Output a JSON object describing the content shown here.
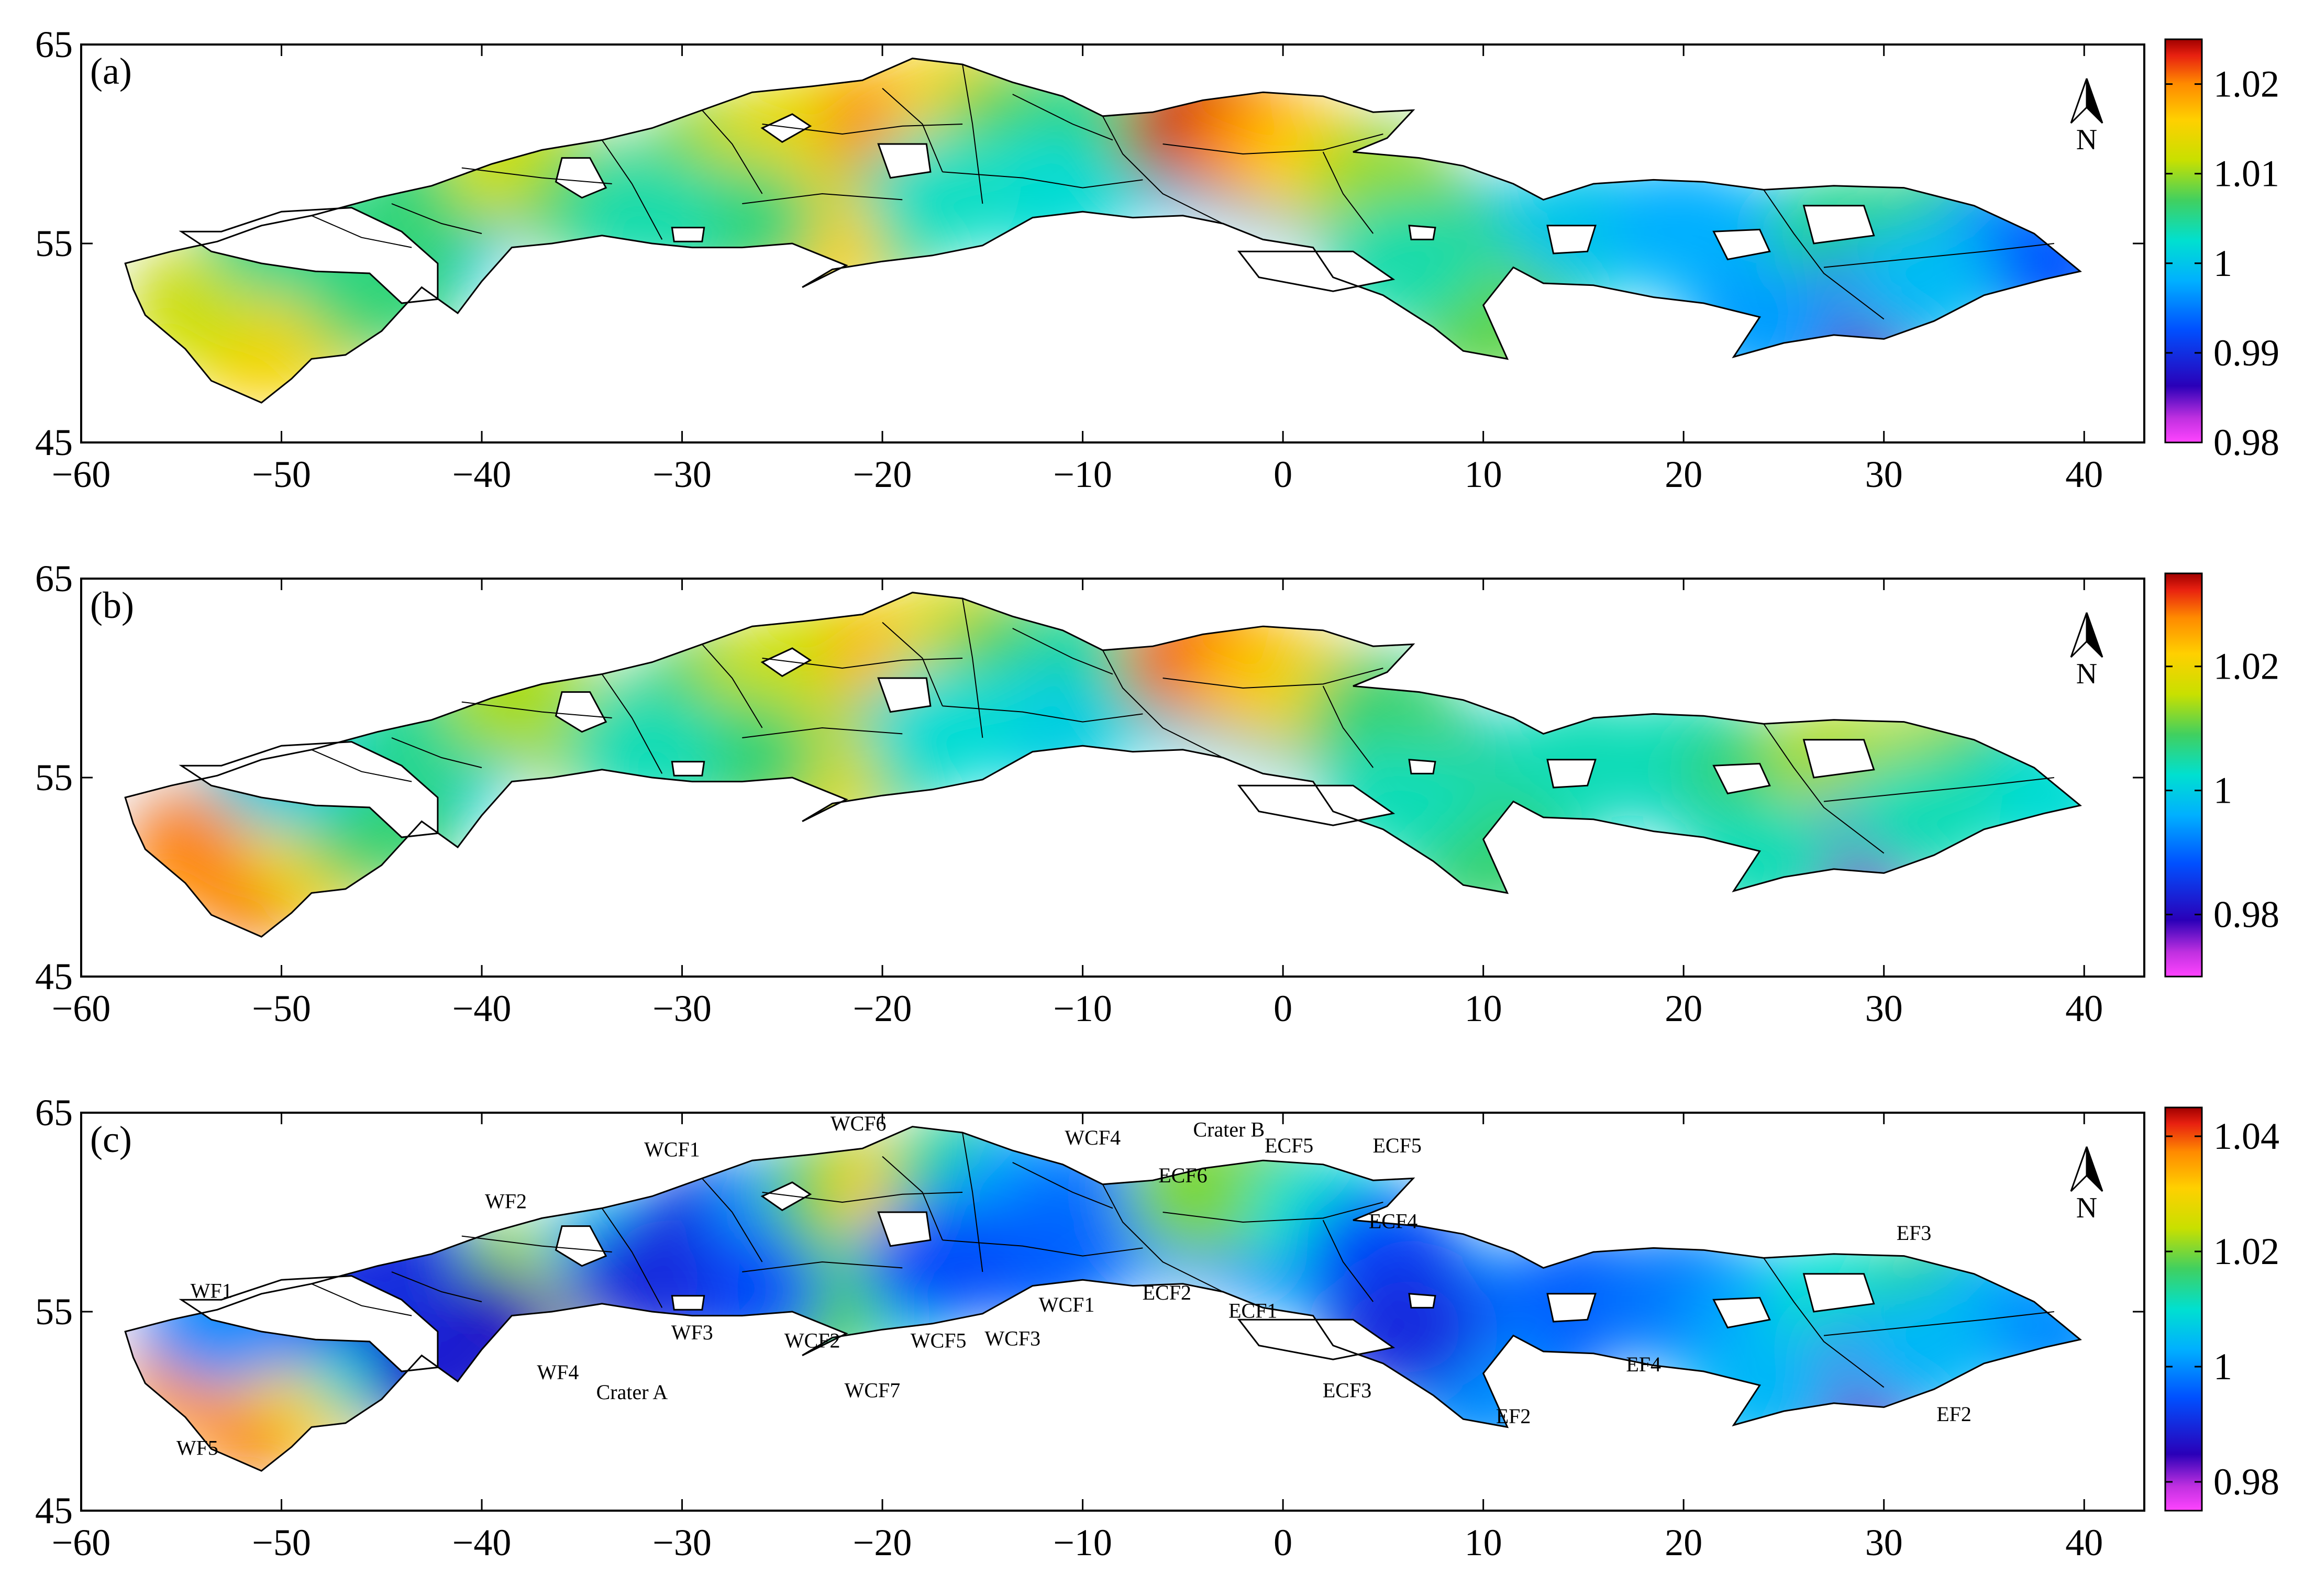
{
  "colors": {
    "colormap": [
      "#ff44ff",
      "#2a00b8",
      "#0050ff",
      "#00b0ff",
      "#00e0d0",
      "#40d060",
      "#c8e000",
      "#ffd000",
      "#ff8a00",
      "#e82010",
      "#a00000"
    ],
    "boundary": "#000000"
  },
  "north_arrow": {
    "label": "N",
    "icon": "north-arrow-icon"
  },
  "chart_data": [
    {
      "type": "heatmap",
      "panel_label": "(a)",
      "xlim": [
        -60,
        43
      ],
      "ylim": [
        45,
        65
      ],
      "x_ticks": [
        "-60",
        "-50",
        "-40",
        "-30",
        "-20",
        "-10",
        "0",
        "10",
        "20",
        "30",
        "40"
      ],
      "y_ticks": [
        "45",
        "55",
        "65"
      ],
      "colorbar": {
        "range": [
          0.98,
          1.025
        ],
        "ticks": [
          "1.02",
          "1.01",
          "1",
          "0.99",
          "0.98"
        ],
        "tick_values": [
          1.02,
          1.01,
          1.0,
          0.99,
          0.98
        ]
      },
      "labels": []
    },
    {
      "type": "heatmap",
      "panel_label": "(b)",
      "xlim": [
        -60,
        43
      ],
      "ylim": [
        45,
        65
      ],
      "x_ticks": [
        "-60",
        "-50",
        "-40",
        "-30",
        "-20",
        "-10",
        "0",
        "10",
        "20",
        "30",
        "40"
      ],
      "y_ticks": [
        "45",
        "55",
        "65"
      ],
      "colorbar": {
        "range": [
          0.97,
          1.035
        ],
        "ticks": [
          "1.02",
          "1",
          "0.98"
        ],
        "tick_values": [
          1.02,
          1.0,
          0.98
        ]
      },
      "labels": []
    },
    {
      "type": "heatmap",
      "panel_label": "(c)",
      "xlim": [
        -60,
        43
      ],
      "ylim": [
        45,
        65
      ],
      "x_ticks": [
        "-60",
        "-50",
        "-40",
        "-30",
        "-20",
        "-10",
        "0",
        "10",
        "20",
        "30",
        "40"
      ],
      "y_ticks": [
        "45",
        "55",
        "65"
      ],
      "colorbar": {
        "range": [
          0.975,
          1.045
        ],
        "ticks": [
          "1.04",
          "1.02",
          "1",
          "0.98"
        ],
        "tick_values": [
          1.04,
          1.02,
          1.0,
          0.98
        ]
      },
      "labels": [
        {
          "text": "WF1",
          "x": -53.5,
          "y": 55.7
        },
        {
          "text": "WF2",
          "x": -38.8,
          "y": 60.2
        },
        {
          "text": "WF3",
          "x": -29.5,
          "y": 53.6
        },
        {
          "text": "WF4",
          "x": -36.2,
          "y": 51.6
        },
        {
          "text": "WF5",
          "x": -54.2,
          "y": 47.8
        },
        {
          "text": "WCF1",
          "x": -30.5,
          "y": 62.8
        },
        {
          "text": "WCF2",
          "x": -23.5,
          "y": 53.2
        },
        {
          "text": "WCF3",
          "x": -13.5,
          "y": 53.3
        },
        {
          "text": "WCF4",
          "x": -9.5,
          "y": 63.4
        },
        {
          "text": "WCF5",
          "x": -17.2,
          "y": 53.2
        },
        {
          "text": "WCF6",
          "x": -21.2,
          "y": 64.1
        },
        {
          "text": "WCF7",
          "x": -20.5,
          "y": 50.7
        },
        {
          "text": "WCF1",
          "x": -10.8,
          "y": 55.0
        },
        {
          "text": "Crater A",
          "x": -32.5,
          "y": 50.6
        },
        {
          "text": "Crater B",
          "x": -2.7,
          "y": 63.8
        },
        {
          "text": "ECF1",
          "x": -1.5,
          "y": 54.7
        },
        {
          "text": "ECF2",
          "x": -5.8,
          "y": 55.6
        },
        {
          "text": "ECF3",
          "x": 3.2,
          "y": 50.7
        },
        {
          "text": "ECF4",
          "x": 5.5,
          "y": 59.2
        },
        {
          "text": "ECF5",
          "x": 0.3,
          "y": 63.0
        },
        {
          "text": "ECF5",
          "x": 5.7,
          "y": 63.0
        },
        {
          "text": "ECF6",
          "x": -5.0,
          "y": 61.5
        },
        {
          "text": "EF2",
          "x": 11.5,
          "y": 49.4
        },
        {
          "text": "EF2",
          "x": 33.5,
          "y": 49.5
        },
        {
          "text": "EF3",
          "x": 31.5,
          "y": 58.6
        },
        {
          "text": "EF4",
          "x": 18.0,
          "y": 52.0
        }
      ]
    }
  ]
}
